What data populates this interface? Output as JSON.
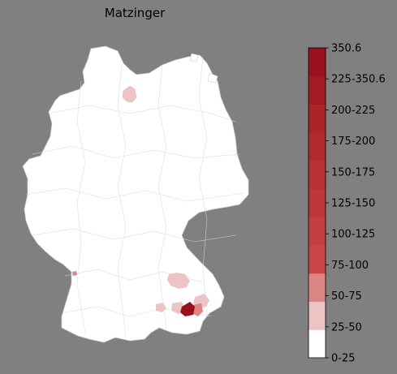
{
  "title": "Matzinger",
  "colorbar": {
    "tick_labels": [
      "0-25",
      "25-50",
      "50-75",
      "75-100",
      "100-125",
      "125-150",
      "150-175",
      "175-200",
      "200-225",
      "225-350.6",
      "350.6"
    ],
    "bins": [
      {
        "label": "0-25",
        "color": "#ffffff"
      },
      {
        "label": "25-50",
        "color": "#ecc4c4"
      },
      {
        "label": "50-75",
        "color": "#db8585"
      },
      {
        "label": "75-100",
        "color": "#c94646"
      },
      {
        "label": "100-125",
        "color": "#c43f40"
      },
      {
        "label": "125-150",
        "color": "#bf3839"
      },
      {
        "label": "150-175",
        "color": "#b93133"
      },
      {
        "label": "175-200",
        "color": "#b32a2d"
      },
      {
        "label": "200-225",
        "color": "#ad2327"
      },
      {
        "label": "225-350.6",
        "color": "#a51a22"
      },
      {
        "label": "350.6",
        "color": "#9c0f1c"
      }
    ]
  },
  "colors": {
    "background": "#808080",
    "land": "#ffffff",
    "borders": "#cccccc"
  },
  "highlighted_regions": [
    {
      "name": "north-region",
      "bin": "25-50"
    },
    {
      "name": "southwest-region-small",
      "bin": "50-75"
    },
    {
      "name": "bavaria-north-region",
      "bin": "25-50"
    },
    {
      "name": "bavaria-east-region",
      "bin": "25-50"
    },
    {
      "name": "bavaria-south-region-1",
      "bin": "25-50"
    },
    {
      "name": "bavaria-south-region-2",
      "bin": "25-50"
    },
    {
      "name": "bavaria-south-region-3",
      "bin": "50-75"
    },
    {
      "name": "bavaria-hotspot",
      "bin": "350.6"
    }
  ]
}
